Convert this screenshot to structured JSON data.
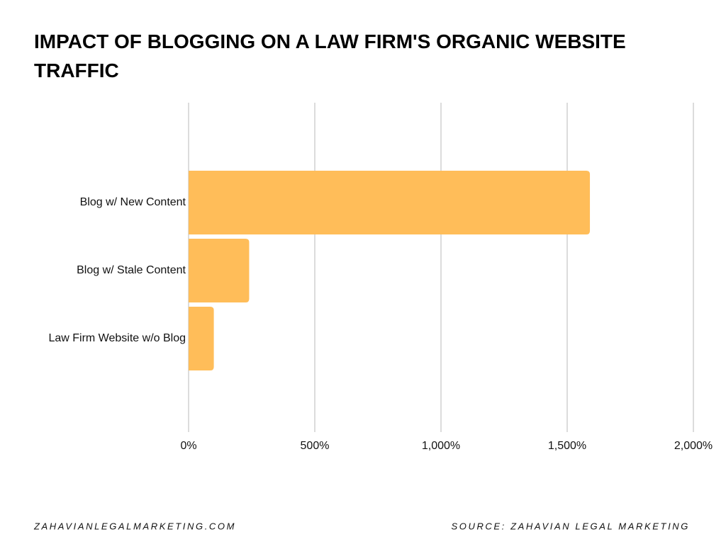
{
  "chart_data": {
    "type": "bar",
    "orientation": "horizontal",
    "title": "IMPACT OF BLOGGING ON A LAW FIRM'S ORGANIC WEBSITE TRAFFIC",
    "categories": [
      "Blog w/ New Content",
      "Blog w/ Stale Content",
      "Law Firm Website w/o Blog"
    ],
    "values": [
      1590,
      240,
      100
    ],
    "color": "#ffbd59",
    "xlim": [
      0,
      2000
    ],
    "xticks": [
      {
        "value": 0,
        "label": "0%"
      },
      {
        "value": 500,
        "label": "500%"
      },
      {
        "value": 1000,
        "label": "1,000%"
      },
      {
        "value": 1500,
        "label": "1,500%"
      },
      {
        "value": 2000,
        "label": "2,000%"
      }
    ],
    "grid": true,
    "footer_left": "ZAHAVIANLEGALMARKETING.COM",
    "footer_right": "SOURCE: ZAHAVIAN LEGAL MARKETING"
  }
}
